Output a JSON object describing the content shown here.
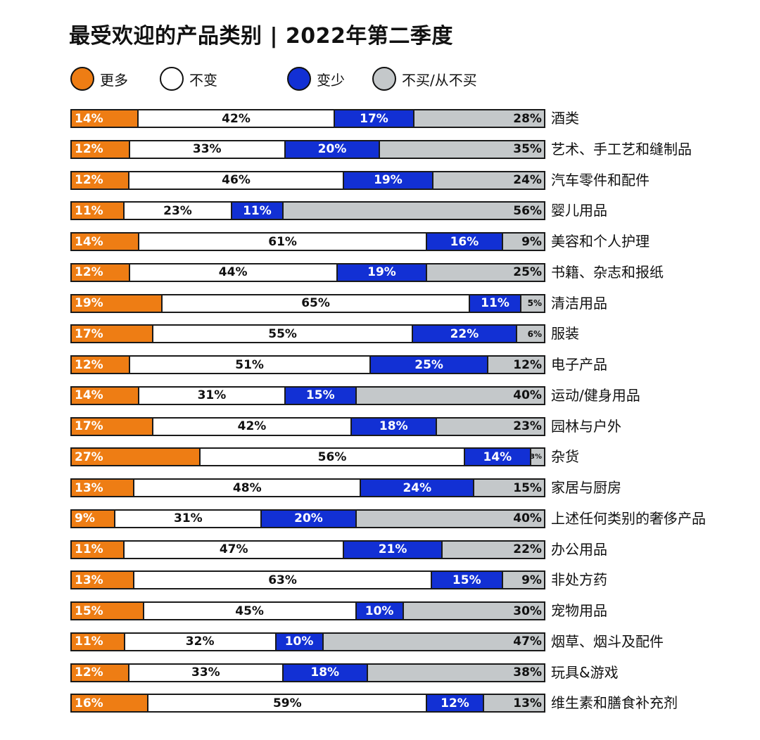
{
  "title": "最受欢迎的产品类别 | 2022年第二季度",
  "legend": [
    {
      "key": "more",
      "label": "更多",
      "color": "#ee7d14"
    },
    {
      "key": "same",
      "label": "不变",
      "color": "#ffffff"
    },
    {
      "key": "less",
      "label": "变少",
      "color": "#1230d4"
    },
    {
      "key": "none",
      "label": "不买/从不买",
      "color": "#c4c8ca"
    }
  ],
  "chart_data": {
    "type": "bar",
    "orientation": "horizontal",
    "stacked": true,
    "percent_stacked": true,
    "title": "最受欢迎的产品类别 | 2022年第二季度",
    "xlabel": "",
    "ylabel": "",
    "legend_position": "top",
    "grid": false,
    "categories": [
      "酒类",
      "艺术、手工艺和缝制品",
      "汽车零件和配件",
      "婴儿用品",
      "美容和个人护理",
      "书籍、杂志和报纸",
      "清洁用品",
      "服装",
      "电子产品",
      "运动/健身用品",
      "园林与户外",
      "杂货",
      "家居与厨房",
      "上述任何类别的奢侈产品",
      "办公用品",
      "非处方药",
      "宠物用品",
      "烟草、烟斗及配件",
      "玩具&游戏",
      "维生素和膳食补充剂"
    ],
    "series": [
      {
        "name": "更多",
        "color": "#ee7d14",
        "values": [
          14,
          12,
          12,
          11,
          14,
          12,
          19,
          17,
          12,
          14,
          17,
          27,
          13,
          9,
          11,
          13,
          15,
          11,
          12,
          16
        ]
      },
      {
        "name": "不变",
        "color": "#ffffff",
        "values": [
          42,
          33,
          46,
          23,
          61,
          44,
          65,
          55,
          51,
          31,
          42,
          56,
          48,
          31,
          47,
          63,
          45,
          32,
          33,
          59
        ]
      },
      {
        "name": "变少",
        "color": "#1230d4",
        "values": [
          17,
          20,
          19,
          11,
          16,
          19,
          11,
          22,
          25,
          15,
          18,
          14,
          24,
          20,
          21,
          15,
          10,
          10,
          18,
          12
        ]
      },
      {
        "name": "不买/从不买",
        "color": "#c4c8ca",
        "values": [
          28,
          35,
          24,
          56,
          9,
          25,
          5,
          6,
          12,
          40,
          23,
          3,
          15,
          40,
          22,
          9,
          30,
          47,
          38,
          13
        ]
      }
    ]
  },
  "rows": [
    {
      "label": "酒类",
      "more": "14%",
      "same": "42%",
      "less": "17%",
      "none": "28%"
    },
    {
      "label": "艺术、手工艺和缝制品",
      "more": "12%",
      "same": "33%",
      "less": "20%",
      "none": "35%"
    },
    {
      "label": "汽车零件和配件",
      "more": "12%",
      "same": "46%",
      "less": "19%",
      "none": "24%"
    },
    {
      "label": "婴儿用品",
      "more": "11%",
      "same": "23%",
      "less": "11%",
      "none": "56%"
    },
    {
      "label": "美容和个人护理",
      "more": "14%",
      "same": "61%",
      "less": "16%",
      "none": "9%"
    },
    {
      "label": "书籍、杂志和报纸",
      "more": "12%",
      "same": "44%",
      "less": "19%",
      "none": "25%"
    },
    {
      "label": "清洁用品",
      "more": "19%",
      "same": "65%",
      "less": "11%",
      "none": "5%"
    },
    {
      "label": "服装",
      "more": "17%",
      "same": "55%",
      "less": "22%",
      "none": "6%"
    },
    {
      "label": "电子产品",
      "more": "12%",
      "same": "51%",
      "less": "25%",
      "none": "12%"
    },
    {
      "label": "运动/健身用品",
      "more": "14%",
      "same": "31%",
      "less": "15%",
      "none": "40%"
    },
    {
      "label": "园林与户外",
      "more": "17%",
      "same": "42%",
      "less": "18%",
      "none": "23%"
    },
    {
      "label": "杂货",
      "more": "27%",
      "same": "56%",
      "less": "14%",
      "none": "3%"
    },
    {
      "label": "家居与厨房",
      "more": "13%",
      "same": "48%",
      "less": "24%",
      "none": "15%"
    },
    {
      "label": "上述任何类别的奢侈产品",
      "more": "9%",
      "same": "31%",
      "less": "20%",
      "none": "40%"
    },
    {
      "label": "办公用品",
      "more": "11%",
      "same": "47%",
      "less": "21%",
      "none": "22%"
    },
    {
      "label": "非处方药",
      "more": "13%",
      "same": "63%",
      "less": "15%",
      "none": "9%"
    },
    {
      "label": "宠物用品",
      "more": "15%",
      "same": "45%",
      "less": "10%",
      "none": "30%"
    },
    {
      "label": "烟草、烟斗及配件",
      "more": "11%",
      "same": "32%",
      "less": "10%",
      "none": "47%"
    },
    {
      "label": "玩具&游戏",
      "more": "12%",
      "same": "33%",
      "less": "18%",
      "none": "38%"
    },
    {
      "label": "维生素和膳食补充剂",
      "more": "16%",
      "same": "59%",
      "less": "12%",
      "none": "13%"
    }
  ]
}
